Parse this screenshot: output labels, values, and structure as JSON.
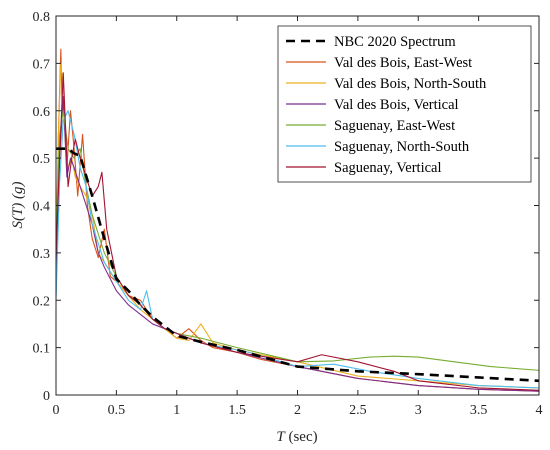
{
  "chart_data": {
    "type": "line",
    "title": "",
    "xlabel": {
      "symbol": "T",
      "unit": " (sec)"
    },
    "ylabel": {
      "symbol_s": "S(",
      "symbol_t": "T",
      "symbol_close": ")",
      "unit": " (g)"
    },
    "xlim": [
      0,
      4
    ],
    "ylim": [
      0,
      0.8
    ],
    "xticks": [
      0,
      0.5,
      1,
      1.5,
      2,
      2.5,
      3,
      3.5,
      4
    ],
    "xtick_labels": [
      "0",
      "0.5",
      "1",
      "1.5",
      "2",
      "2.5",
      "3",
      "3.5",
      "4"
    ],
    "yticks": [
      0,
      0.1,
      0.2,
      0.3,
      0.4,
      0.5,
      0.6,
      0.7,
      0.8
    ],
    "ytick_labels": [
      "0",
      "0.1",
      "0.2",
      "0.3",
      "0.4",
      "0.5",
      "0.6",
      "0.7",
      "0.8"
    ],
    "grid": false,
    "legend_position": "top-right",
    "series": [
      {
        "name": "NBC 2020 Spectrum",
        "color": "#000000",
        "dashed": true,
        "x": [
          0,
          0.1,
          0.15,
          0.2,
          0.3,
          0.4,
          0.5,
          0.6,
          0.7,
          0.8,
          0.9,
          1.0,
          1.2,
          1.5,
          2.0,
          2.5,
          3.0,
          3.5,
          4.0
        ],
        "y": [
          0.52,
          0.52,
          0.51,
          0.505,
          0.42,
          0.33,
          0.245,
          0.22,
          0.19,
          0.165,
          0.145,
          0.125,
          0.112,
          0.095,
          0.06,
          0.05,
          0.044,
          0.037,
          0.03
        ]
      },
      {
        "name": "Val des Bois, East-West",
        "color": "#D95319",
        "dashed": false,
        "x": [
          0,
          0.02,
          0.04,
          0.05,
          0.07,
          0.09,
          0.12,
          0.15,
          0.18,
          0.22,
          0.26,
          0.3,
          0.35,
          0.4,
          0.45,
          0.5,
          0.6,
          0.7,
          0.8,
          0.9,
          1.0,
          1.1,
          1.2,
          1.3,
          1.4,
          1.5,
          1.7,
          2.0,
          2.5,
          3.0,
          3.5,
          4.0
        ],
        "y": [
          0.25,
          0.55,
          0.73,
          0.62,
          0.58,
          0.48,
          0.6,
          0.52,
          0.42,
          0.55,
          0.4,
          0.33,
          0.29,
          0.35,
          0.25,
          0.24,
          0.21,
          0.2,
          0.16,
          0.14,
          0.12,
          0.14,
          0.115,
          0.1,
          0.095,
          0.09,
          0.075,
          0.06,
          0.035,
          0.02,
          0.012,
          0.008
        ]
      },
      {
        "name": "Val des Bois, North-South",
        "color": "#EDB120",
        "dashed": false,
        "x": [
          0,
          0.02,
          0.04,
          0.06,
          0.08,
          0.1,
          0.13,
          0.16,
          0.2,
          0.25,
          0.3,
          0.35,
          0.4,
          0.5,
          0.6,
          0.7,
          0.8,
          0.9,
          1.0,
          1.1,
          1.2,
          1.3,
          1.5,
          1.7,
          2.0,
          2.5,
          3.0,
          3.5,
          4.0
        ],
        "y": [
          0.3,
          0.55,
          0.7,
          0.65,
          0.52,
          0.48,
          0.5,
          0.46,
          0.44,
          0.42,
          0.38,
          0.3,
          0.28,
          0.24,
          0.21,
          0.18,
          0.16,
          0.14,
          0.12,
          0.115,
          0.15,
          0.11,
          0.095,
          0.085,
          0.07,
          0.04,
          0.03,
          0.02,
          0.015
        ]
      },
      {
        "name": "Val des Bois, Vertical",
        "color": "#7E2F8E",
        "dashed": false,
        "x": [
          0,
          0.03,
          0.06,
          0.09,
          0.12,
          0.15,
          0.2,
          0.25,
          0.3,
          0.35,
          0.4,
          0.5,
          0.6,
          0.7,
          0.8,
          0.9,
          1.0,
          1.2,
          1.5,
          2.0,
          2.5,
          3.0,
          3.5,
          4.0
        ],
        "y": [
          0.22,
          0.5,
          0.63,
          0.46,
          0.5,
          0.48,
          0.44,
          0.4,
          0.36,
          0.3,
          0.27,
          0.22,
          0.19,
          0.17,
          0.15,
          0.14,
          0.13,
          0.11,
          0.09,
          0.06,
          0.035,
          0.02,
          0.012,
          0.008
        ]
      },
      {
        "name": "Saguenay, East-West",
        "color": "#77AC30",
        "dashed": false,
        "x": [
          0,
          0.03,
          0.06,
          0.1,
          0.15,
          0.2,
          0.25,
          0.3,
          0.4,
          0.5,
          0.6,
          0.7,
          0.8,
          0.9,
          1.0,
          1.2,
          1.5,
          2.0,
          2.3,
          2.6,
          2.8,
          3.0,
          3.3,
          3.6,
          4.0
        ],
        "y": [
          0.32,
          0.55,
          0.6,
          0.52,
          0.5,
          0.52,
          0.44,
          0.38,
          0.3,
          0.25,
          0.21,
          0.19,
          0.16,
          0.14,
          0.13,
          0.12,
          0.1,
          0.07,
          0.072,
          0.08,
          0.082,
          0.08,
          0.07,
          0.06,
          0.052
        ]
      },
      {
        "name": "Saguenay, North-South",
        "color": "#4DBEEE",
        "dashed": false,
        "x": [
          0,
          0.03,
          0.06,
          0.1,
          0.15,
          0.2,
          0.25,
          0.3,
          0.4,
          0.5,
          0.6,
          0.7,
          0.75,
          0.8,
          0.9,
          1.0,
          1.1,
          1.2,
          1.4,
          1.6,
          2.0,
          2.3,
          2.6,
          3.0,
          3.5,
          4.0
        ],
        "y": [
          0.2,
          0.45,
          0.58,
          0.6,
          0.55,
          0.48,
          0.44,
          0.36,
          0.28,
          0.24,
          0.2,
          0.18,
          0.22,
          0.16,
          0.14,
          0.13,
          0.12,
          0.11,
          0.1,
          0.09,
          0.06,
          0.065,
          0.05,
          0.035,
          0.02,
          0.015
        ]
      },
      {
        "name": "Saguenay, Vertical",
        "color": "#A2142F",
        "dashed": false,
        "x": [
          0,
          0.03,
          0.06,
          0.1,
          0.13,
          0.16,
          0.2,
          0.25,
          0.3,
          0.35,
          0.38,
          0.42,
          0.5,
          0.6,
          0.7,
          0.8,
          0.9,
          1.0,
          1.2,
          1.5,
          2.0,
          2.2,
          2.5,
          2.8,
          3.0,
          3.5,
          4.0
        ],
        "y": [
          0.3,
          0.5,
          0.68,
          0.44,
          0.5,
          0.54,
          0.5,
          0.46,
          0.42,
          0.44,
          0.47,
          0.35,
          0.25,
          0.21,
          0.19,
          0.16,
          0.14,
          0.13,
          0.11,
          0.09,
          0.07,
          0.085,
          0.07,
          0.05,
          0.03,
          0.015,
          0.01
        ]
      }
    ]
  }
}
